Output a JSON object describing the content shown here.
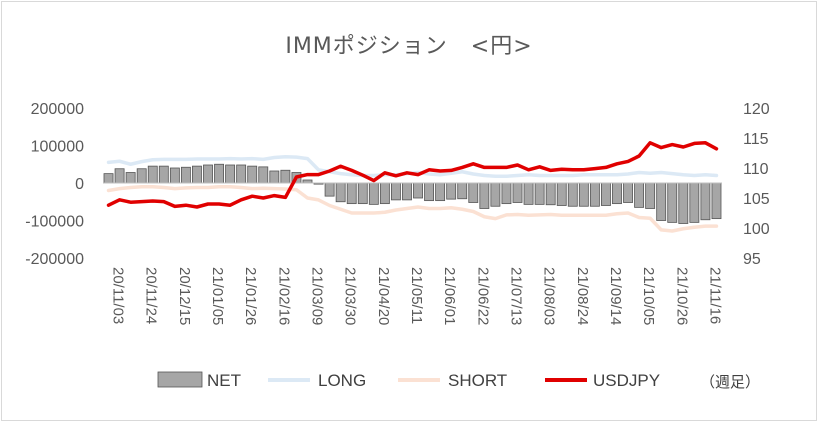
{
  "chart_data": {
    "type": "bar+line",
    "title": "IMMポジション　<円>",
    "note": "（週足）",
    "y_left": {
      "ticks": [
        200000,
        100000,
        0,
        -100000,
        -200000
      ],
      "ylim": [
        -200000,
        200000
      ]
    },
    "y_right": {
      "ticks": [
        120,
        115,
        110,
        105,
        100,
        95
      ],
      "ylim": [
        95,
        120
      ]
    },
    "x_labels": [
      "20/11/03",
      "20/11/24",
      "20/12/15",
      "21/01/05",
      "21/01/26",
      "21/02/16",
      "21/03/09",
      "21/03/30",
      "21/04/20",
      "21/05/11",
      "21/06/01",
      "21/06/22",
      "21/07/13",
      "21/08/03",
      "21/08/24",
      "21/09/14",
      "21/10/05",
      "21/10/26",
      "21/11/16"
    ],
    "dates": [
      "20/11/03",
      "20/11/10",
      "20/11/17",
      "20/11/24",
      "20/12/01",
      "20/12/08",
      "20/12/15",
      "20/12/22",
      "20/12/29",
      "21/01/05",
      "21/01/12",
      "21/01/19",
      "21/01/26",
      "21/02/02",
      "21/02/09",
      "21/02/16",
      "21/02/23",
      "21/03/02",
      "21/03/09",
      "21/03/16",
      "21/03/23",
      "21/03/30",
      "21/04/06",
      "21/04/13",
      "21/04/20",
      "21/04/27",
      "21/05/04",
      "21/05/11",
      "21/05/18",
      "21/05/25",
      "21/06/01",
      "21/06/08",
      "21/06/15",
      "21/06/22",
      "21/06/29",
      "21/07/06",
      "21/07/13",
      "21/07/20",
      "21/07/27",
      "21/08/03",
      "21/08/10",
      "21/08/17",
      "21/08/24",
      "21/08/31",
      "21/09/07",
      "21/09/14",
      "21/09/21",
      "21/09/28",
      "21/10/05",
      "21/10/12",
      "21/10/19",
      "21/10/26",
      "21/11/02",
      "21/11/09",
      "21/11/16",
      "21/11/23"
    ],
    "series": [
      {
        "name": "NET",
        "kind": "bar",
        "axis": "left",
        "color": "#a6a6a6",
        "values": [
          25000,
          38000,
          28000,
          38000,
          45000,
          45000,
          40000,
          42000,
          45000,
          48000,
          50000,
          48000,
          48000,
          45000,
          43000,
          32000,
          34000,
          28000,
          8000,
          -3000,
          -35000,
          -50000,
          -55000,
          -55000,
          -57000,
          -55000,
          -45000,
          -45000,
          -40000,
          -47000,
          -47000,
          -43000,
          -42000,
          -52000,
          -68000,
          -62000,
          -55000,
          -52000,
          -57000,
          -57000,
          -58000,
          -60000,
          -62000,
          -62000,
          -62000,
          -60000,
          -55000,
          -52000,
          -65000,
          -68000,
          -100000,
          -105000,
          -108000,
          -105000,
          -98000,
          -95000
        ]
      },
      {
        "name": "LONG",
        "kind": "line",
        "axis": "left",
        "color": "#dce9f5",
        "values": [
          55000,
          58000,
          50000,
          57000,
          62000,
          63000,
          63000,
          63000,
          64000,
          64000,
          64000,
          65000,
          64000,
          65000,
          63000,
          68000,
          70000,
          69000,
          65000,
          35000,
          30000,
          25000,
          22000,
          20000,
          20000,
          22000,
          22000,
          25000,
          28000,
          24000,
          22000,
          26000,
          30000,
          24000,
          20000,
          18000,
          18000,
          20000,
          22000,
          20000,
          20000,
          20000,
          20000,
          22000,
          22000,
          22000,
          22000,
          24000,
          28000,
          26000,
          28000,
          25000,
          22000,
          20000,
          22000,
          20000
        ]
      },
      {
        "name": "SHORT",
        "kind": "line",
        "axis": "left",
        "color": "#fbe1d3",
        "values": [
          -20000,
          -15000,
          -12000,
          -10000,
          -10000,
          -12000,
          -15000,
          -13000,
          -12000,
          -12000,
          -10000,
          -10000,
          -12000,
          -15000,
          -14000,
          -15000,
          -16000,
          -18000,
          -40000,
          -45000,
          -60000,
          -70000,
          -80000,
          -80000,
          -80000,
          -78000,
          -72000,
          -68000,
          -64000,
          -68000,
          -68000,
          -66000,
          -70000,
          -76000,
          -90000,
          -95000,
          -85000,
          -84000,
          -86000,
          -85000,
          -84000,
          -86000,
          -86000,
          -86000,
          -86000,
          -86000,
          -82000,
          -80000,
          -92000,
          -94000,
          -125000,
          -128000,
          -122000,
          -118000,
          -115000,
          -115000
        ]
      },
      {
        "name": "USDJPY",
        "kind": "line",
        "axis": "right",
        "color": "#e00000",
        "values": [
          103.8,
          104.7,
          104.3,
          104.4,
          104.5,
          104.4,
          103.6,
          103.8,
          103.5,
          104.0,
          104.0,
          103.8,
          104.7,
          105.3,
          105.0,
          105.4,
          105.1,
          108.5,
          108.9,
          108.9,
          109.5,
          110.3,
          109.6,
          108.8,
          107.9,
          109.2,
          108.7,
          109.2,
          108.9,
          109.7,
          109.5,
          109.6,
          110.1,
          110.7,
          110.1,
          110.1,
          110.1,
          110.5,
          109.7,
          110.2,
          109.6,
          109.8,
          109.7,
          109.7,
          109.9,
          110.1,
          110.7,
          111.1,
          112.0,
          114.2,
          113.4,
          113.9,
          113.5,
          114.1,
          114.2,
          113.2
        ]
      }
    ]
  }
}
